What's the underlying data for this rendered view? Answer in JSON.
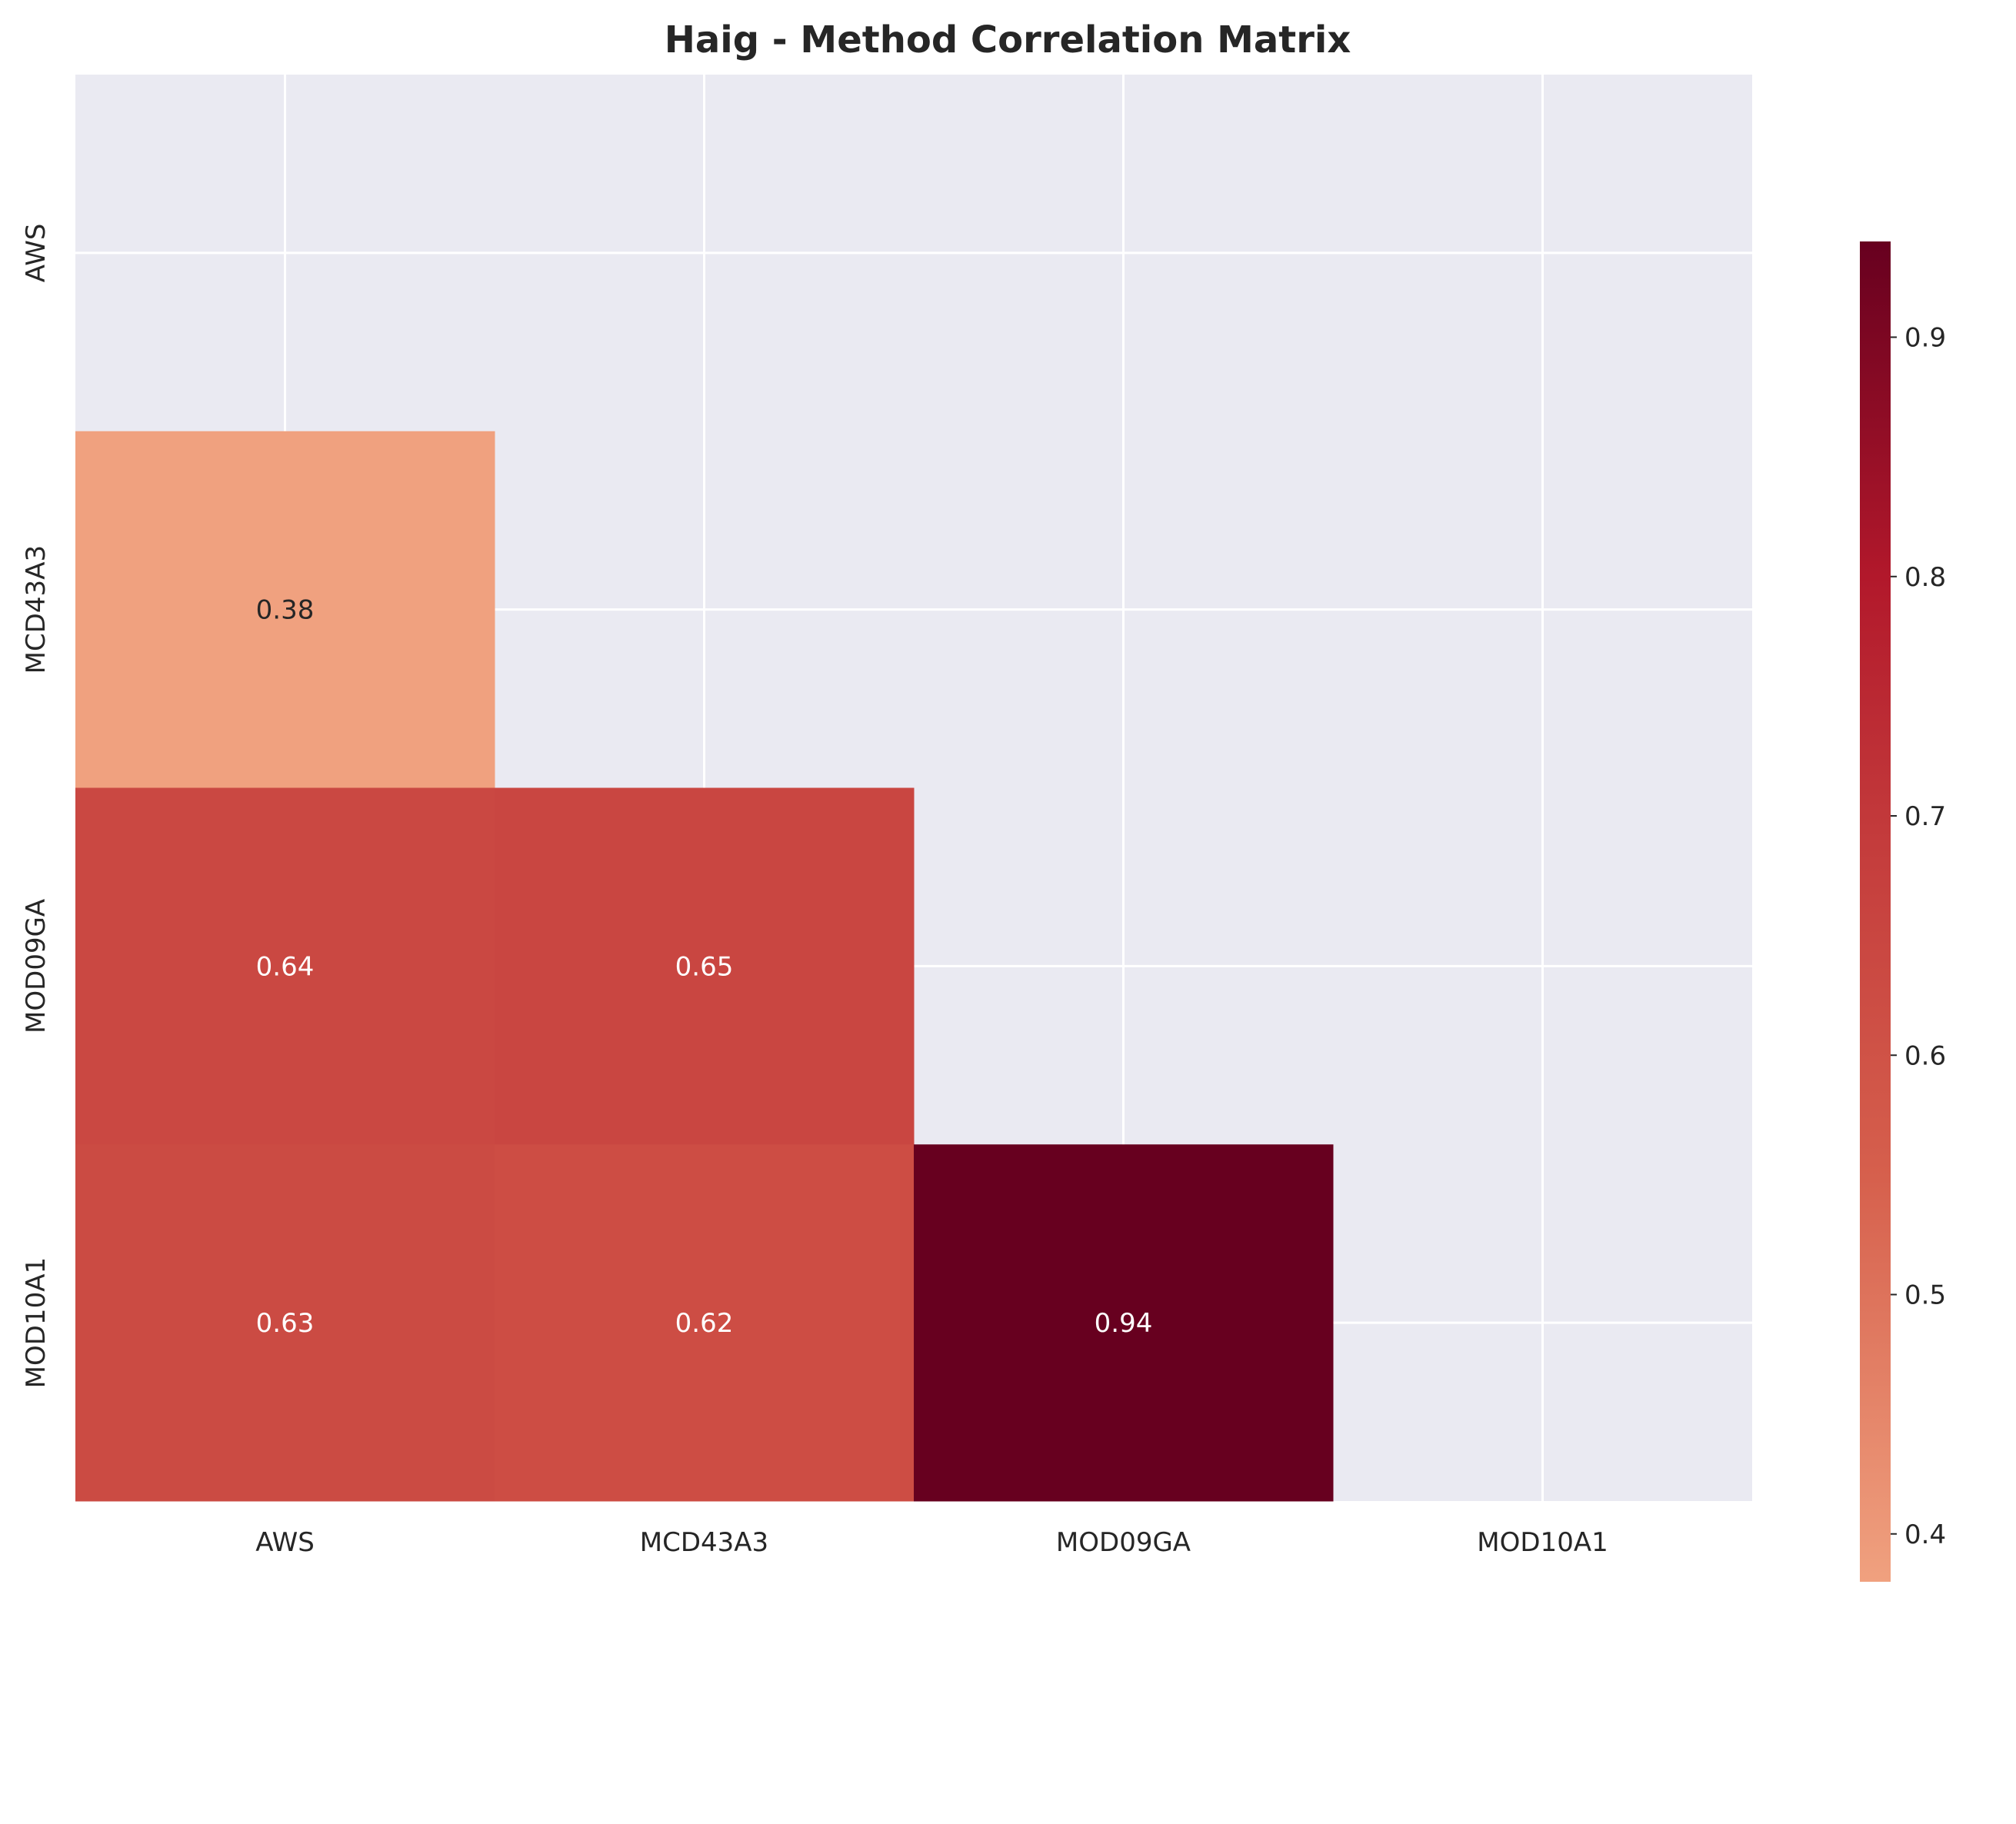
{
  "chart_data": {
    "type": "heatmap",
    "title": "Haig - Method Correlation Matrix",
    "xlabel": "",
    "ylabel": "",
    "x_categories": [
      "AWS",
      "MCD43A3",
      "MOD09GA",
      "MOD10A1"
    ],
    "y_categories": [
      "AWS",
      "MCD43A3",
      "MOD09GA",
      "MOD10A1"
    ],
    "masked": "upper triangle including diagonal",
    "cells": [
      {
        "row": "MCD43A3",
        "col": "AWS",
        "value": 0.38,
        "label": "0.38"
      },
      {
        "row": "MOD09GA",
        "col": "AWS",
        "value": 0.64,
        "label": "0.64"
      },
      {
        "row": "MOD09GA",
        "col": "MCD43A3",
        "value": 0.65,
        "label": "0.65"
      },
      {
        "row": "MOD10A1",
        "col": "AWS",
        "value": 0.63,
        "label": "0.63"
      },
      {
        "row": "MOD10A1",
        "col": "MCD43A3",
        "value": 0.62,
        "label": "0.62"
      },
      {
        "row": "MOD10A1",
        "col": "MOD09GA",
        "value": 0.94,
        "label": "0.94"
      }
    ],
    "colorbar": {
      "colormap": "RdBu_r (warm half)",
      "range": [
        0.38,
        0.94
      ],
      "ticks": [
        0.4,
        0.5,
        0.6,
        0.7,
        0.8,
        0.9
      ],
      "tick_labels": [
        "0.4",
        "0.5",
        "0.6",
        "0.7",
        "0.8",
        "0.9"
      ]
    },
    "grid": true,
    "colors": {
      "background": "#eaeaf2",
      "grid": "#ffffff",
      "low": "#f0a17f",
      "high": "#67001f"
    }
  }
}
